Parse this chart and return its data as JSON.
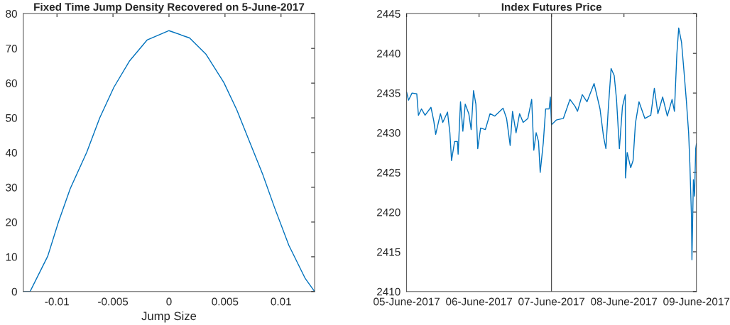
{
  "chart_data": [
    {
      "type": "line",
      "title": "Fixed Time Jump Density Recovered on 5-June-2017",
      "xlabel": "Jump Size",
      "xlim": [
        -0.013,
        0.013
      ],
      "xticks": [
        {
          "value": -0.01,
          "label": "-0.01"
        },
        {
          "value": -0.005,
          "label": "-0.005"
        },
        0,
        0.005,
        0.01
      ],
      "ylim": [
        0,
        80
      ],
      "yticks": [
        0,
        10,
        20,
        30,
        40,
        50,
        60,
        70,
        80
      ],
      "grid": false,
      "series": [
        {
          "color": "#0072bd",
          "x": [
            -0.013,
            -0.0124,
            -0.01082,
            -0.00987,
            -0.00882,
            -0.00734,
            -0.00618,
            -0.00492,
            -0.00354,
            -0.00196,
            0,
            0.00184,
            0.00331,
            0.00489,
            0.00605,
            0.00711,
            0.00838,
            0.00943,
            0.0107,
            0.01217,
            0.013
          ],
          "values": [
            0,
            0,
            10.2,
            20,
            29.6,
            40.1,
            50,
            58.8,
            66.3,
            72.4,
            75.1,
            73,
            68.3,
            60.2,
            52.3,
            43.8,
            33.6,
            24.1,
            13.3,
            3.7,
            0
          ]
        }
      ]
    },
    {
      "type": "line",
      "title": "Index Futures Price",
      "xlim": [
        "2017-06-05",
        "2017-06-09"
      ],
      "xticks": [
        {
          "value": "2017-06-05",
          "label": "05-June-2017"
        },
        {
          "value": "2017-06-06",
          "label": "06-June-2017"
        },
        {
          "value": "2017-06-07",
          "label": "07-June-2017"
        },
        {
          "value": "2017-06-08",
          "label": "08-June-2017"
        },
        {
          "value": "2017-06-09",
          "label": "09-June-2017"
        }
      ],
      "ylim": [
        2410,
        2445
      ],
      "yticks": [
        2410,
        2415,
        2420,
        2425,
        2430,
        2435,
        2440,
        2445
      ],
      "grid": false,
      "ref_lines": [
        {
          "axis": "x",
          "value": "2017-06-07",
          "color": "#404040"
        }
      ],
      "series": [
        {
          "color": "#0072bd",
          "x": [
            "2017-06-05T00:00",
            "2017-06-05T00:38",
            "2017-06-05T01:48",
            "2017-06-05T03:22",
            "2017-06-05T03:55",
            "2017-06-05T04:56",
            "2017-06-05T06:07",
            "2017-06-05T08:04",
            "2017-06-05T09:00",
            "2017-06-05T09:38",
            "2017-06-05T11:12",
            "2017-06-05T11:59",
            "2017-06-05T13:33",
            "2017-06-05T14:20",
            "2017-06-05T14:53",
            "2017-06-05T15:54",
            "2017-06-05T16:50",
            "2017-06-05T17:04",
            "2017-06-05T17:51",
            "2017-06-05T18:38",
            "2017-06-05T19:25",
            "2017-06-05T20:36",
            "2017-06-05T21:23",
            "2017-06-05T22:10",
            "2017-06-05T22:57",
            "2017-06-05T23:34",
            "2017-06-06T00:31",
            "2017-06-06T02:05",
            "2017-06-06T03:38",
            "2017-06-06T05:13",
            "2017-06-06T07:57",
            "2017-06-06T09:07",
            "2017-06-06T10:18",
            "2017-06-06T11:05",
            "2017-06-06T12:15",
            "2017-06-06T13:26",
            "2017-06-06T14:36",
            "2017-06-06T16:10",
            "2017-06-06T17:26",
            "2017-06-06T18:08",
            "2017-06-06T18:55",
            "2017-06-06T19:42",
            "2017-06-06T20:15",
            "2017-06-06T21:16",
            "2017-06-06T22:03",
            "2017-06-06T23:13",
            "2017-06-06T23:37",
            "2017-06-07T00:00",
            "2017-06-07T01:34",
            "2017-06-07T03:55",
            "2017-06-07T06:07",
            "2017-06-07T07:50",
            "2017-06-07T08:37",
            "2017-06-07T10:11",
            "2017-06-07T11:45",
            "2017-06-07T14:06",
            "2017-06-07T16:04",
            "2017-06-07T17:14",
            "2017-06-07T18:01",
            "2017-06-07T18:48",
            "2017-06-07T19:44",
            "2017-06-07T20:46",
            "2017-06-07T21:32",
            "2017-06-07T22:29",
            "2017-06-07T23:30",
            "2017-06-08T00:26",
            "2017-06-08T00:31",
            "2017-06-08T01:04",
            "2017-06-08T02:14",
            "2017-06-08T03:01",
            "2017-06-08T03:48",
            "2017-06-08T04:59",
            "2017-06-08T06:56",
            "2017-06-08T08:53",
            "2017-06-08T10:04",
            "2017-06-08T11:14",
            "2017-06-08T12:49",
            "2017-06-08T14:22",
            "2017-06-08T15:56",
            "2017-06-08T16:43",
            "2017-06-08T17:31",
            "2017-06-08T18:08",
            "2017-06-08T19:04",
            "2017-06-08T19:52",
            "2017-06-08T20:38",
            "2017-06-08T21:25",
            "2017-06-08T21:49",
            "2017-06-08T22:22",
            "2017-06-08T22:31",
            "2017-06-08T23:00",
            "2017-06-08T23:23",
            "2017-06-08T23:46",
            "2017-06-09T00:00"
          ],
          "values": [
            2435.1,
            2434.1,
            2435,
            2434.9,
            2432.2,
            2433,
            2432.2,
            2433.2,
            2431.5,
            2429.8,
            2432.4,
            2431.3,
            2432.6,
            2430,
            2426.5,
            2428.9,
            2428.9,
            2427.3,
            2433.9,
            2430.2,
            2433.6,
            2432.4,
            2430.4,
            2435.3,
            2433.6,
            2428,
            2430.6,
            2430.4,
            2432.4,
            2432.1,
            2433.1,
            2431.8,
            2428.4,
            2432.7,
            2430,
            2432.4,
            2431.3,
            2431.8,
            2434.2,
            2427.8,
            2430,
            2428.9,
            2425,
            2428.7,
            2433,
            2433,
            2434.5,
            2431,
            2431.6,
            2431.8,
            2434.2,
            2433.3,
            2432.7,
            2434.8,
            2433.9,
            2436.2,
            2433,
            2429.5,
            2428,
            2433,
            2438.1,
            2437.2,
            2434.2,
            2428,
            2433.3,
            2434.8,
            2424.3,
            2427.5,
            2425.6,
            2426.5,
            2431.2,
            2433.9,
            2431.8,
            2432.2,
            2435.6,
            2432.4,
            2434.5,
            2432.1,
            2434.2,
            2432.7,
            2439.9,
            2443.2,
            2441.4,
            2437.8,
            2434.2,
            2430,
            2426.2,
            2419.3,
            2414,
            2424.1,
            2422,
            2428,
            2428.6
          ]
        }
      ]
    }
  ]
}
